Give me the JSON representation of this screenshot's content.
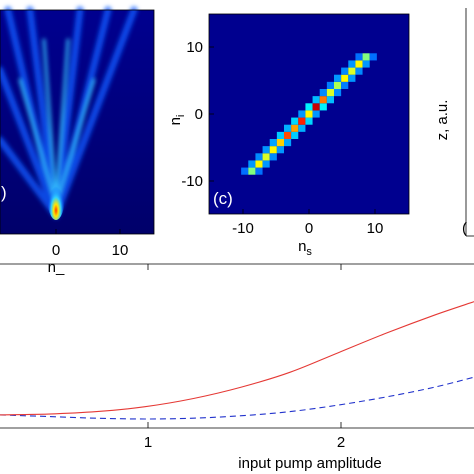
{
  "colors": {
    "colormap": "jet",
    "line_solid": "#e53935",
    "line_dashed": "#2233cc"
  },
  "chart_data": [
    {
      "type": "heatmap",
      "description_visible": "cropped left panel, fan of beams diverging upward from n = 0",
      "xlabel": "n_",
      "x_ticks": [
        "0",
        "10"
      ],
      "panel_label": ")"
    },
    {
      "type": "heatmap",
      "xlabel": "n",
      "xlabel_sub": "s",
      "ylabel": "n",
      "ylabel_sub": "i",
      "x_ticks": [
        "-10",
        "0",
        "10"
      ],
      "y_ticks": [
        "10",
        "0",
        "-10"
      ],
      "xlim": [
        -14,
        14
      ],
      "ylim": [
        -14,
        14
      ],
      "panel_label": "(c)",
      "correlation_diagonal": {
        "n": [
          -8,
          -7,
          -6,
          -5,
          -4,
          -3,
          -2,
          -1,
          0,
          1,
          2,
          3,
          4,
          5,
          6,
          7,
          8
        ],
        "intensity": [
          0.45,
          0.6,
          0.55,
          0.6,
          0.65,
          0.8,
          0.7,
          0.85,
          0.6,
          0.95,
          0.75,
          0.55,
          0.5,
          0.6,
          0.55,
          0.6,
          0.45
        ]
      }
    },
    {
      "type": "heatmap",
      "description_visible": "cropped right panel",
      "ylabel": "z, a.u.",
      "panel_label": "("
    },
    {
      "type": "line",
      "xlabel": "input pump amplitude",
      "x_ticks": [
        "1",
        "2"
      ],
      "xlim": [
        0.25,
        2.7
      ],
      "ylim": [
        0,
        1
      ],
      "series": [
        {
          "style": "solid",
          "x": [
            0.25,
            0.5,
            0.75,
            1.0,
            1.25,
            1.5,
            1.75,
            2.0,
            2.25,
            2.5,
            2.7
          ],
          "values": [
            0.08,
            0.085,
            0.1,
            0.13,
            0.18,
            0.25,
            0.34,
            0.46,
            0.58,
            0.69,
            0.77
          ]
        },
        {
          "style": "dashed",
          "x": [
            0.25,
            0.5,
            0.75,
            1.0,
            1.25,
            1.5,
            1.75,
            2.0,
            2.25,
            2.5,
            2.7
          ],
          "values": [
            0.08,
            0.07,
            0.06,
            0.055,
            0.06,
            0.075,
            0.1,
            0.14,
            0.19,
            0.25,
            0.31
          ]
        }
      ]
    }
  ]
}
